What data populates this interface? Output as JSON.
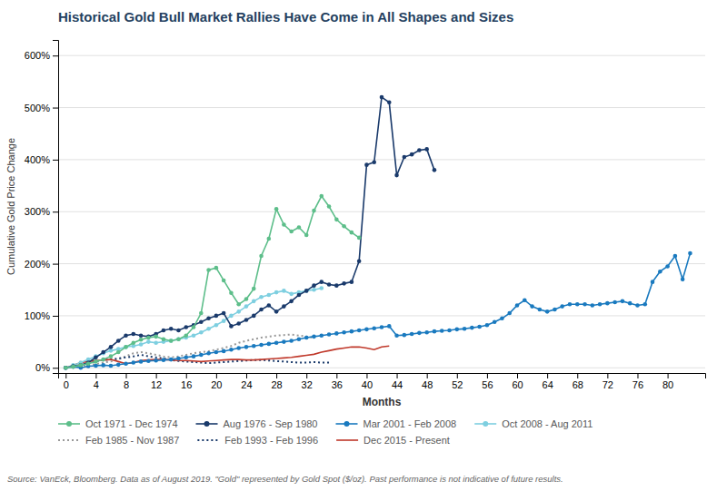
{
  "chart_data": {
    "type": "line",
    "title": "Historical Gold Bull Market Rallies Have Come in All Shapes and Sizes",
    "x_label": "Months",
    "y_label": "Cumulative Gold Price Change",
    "footnote": "Source: VanEck, Bloomberg. Data as of August 2019. \"Gold\" represented by Gold Spot ($/oz). Past performance is not indicative of future results.",
    "xlim": [
      -1,
      85
    ],
    "ylim": [
      -10,
      630
    ],
    "xticks": [
      0,
      4,
      8,
      12,
      16,
      20,
      24,
      28,
      32,
      36,
      40,
      44,
      48,
      52,
      56,
      60,
      64,
      68,
      72,
      76,
      80
    ],
    "yticks": [
      {
        "value": 0,
        "label": "0%"
      },
      {
        "value": 100,
        "label": "100%"
      },
      {
        "value": 200,
        "label": "200%"
      },
      {
        "value": 300,
        "label": "300%"
      },
      {
        "value": 400,
        "label": "400%"
      },
      {
        "value": 500,
        "label": "500%"
      },
      {
        "value": 600,
        "label": "600%"
      }
    ],
    "grid": true,
    "series": [
      {
        "name": "Oct 1971 - Dec 1974",
        "color": "#5DBE8A",
        "line_style": "solid",
        "marker": "circle",
        "x": [
          0,
          1,
          2,
          3,
          4,
          5,
          6,
          7,
          8,
          9,
          10,
          11,
          12,
          13,
          14,
          15,
          16,
          17,
          18,
          19,
          20,
          21,
          22,
          23,
          24,
          25,
          26,
          27,
          28,
          29,
          30,
          31,
          32,
          33,
          34,
          35,
          36,
          37,
          38,
          39
        ],
        "values": [
          0,
          2,
          5,
          8,
          12,
          16,
          22,
          30,
          40,
          48,
          54,
          58,
          60,
          55,
          52,
          55,
          62,
          78,
          105,
          188,
          192,
          168,
          144,
          122,
          132,
          152,
          215,
          248,
          305,
          275,
          262,
          270,
          255,
          302,
          330,
          310,
          285,
          272,
          260,
          250
        ]
      },
      {
        "name": "Aug 1976 - Sep 1980",
        "color": "#1A3A6B",
        "line_style": "solid",
        "marker": "circle",
        "x": [
          0,
          1,
          2,
          3,
          4,
          5,
          6,
          7,
          8,
          9,
          10,
          11,
          12,
          13,
          14,
          15,
          16,
          17,
          18,
          19,
          20,
          21,
          22,
          23,
          24,
          25,
          26,
          27,
          28,
          29,
          30,
          31,
          32,
          33,
          34,
          35,
          36,
          37,
          38,
          39,
          40,
          41,
          42,
          43,
          44,
          45,
          46,
          47,
          48,
          49
        ],
        "values": [
          0,
          3,
          5,
          10,
          20,
          30,
          40,
          52,
          62,
          65,
          62,
          60,
          65,
          72,
          75,
          72,
          78,
          82,
          88,
          95,
          100,
          105,
          80,
          85,
          92,
          100,
          112,
          120,
          108,
          118,
          128,
          140,
          148,
          158,
          165,
          160,
          158,
          162,
          165,
          205,
          390,
          395,
          520,
          510,
          370,
          405,
          410,
          418,
          420,
          380
        ]
      },
      {
        "name": "Mar 2001 - Feb 2008",
        "color": "#1A7ABF",
        "line_style": "solid",
        "marker": "circle",
        "x": [
          0,
          1,
          2,
          3,
          4,
          5,
          6,
          7,
          8,
          9,
          10,
          11,
          12,
          13,
          14,
          15,
          16,
          17,
          18,
          19,
          20,
          21,
          22,
          23,
          24,
          25,
          26,
          27,
          28,
          29,
          30,
          31,
          32,
          33,
          34,
          35,
          36,
          37,
          38,
          39,
          40,
          41,
          42,
          43,
          44,
          45,
          46,
          47,
          48,
          49,
          50,
          51,
          52,
          53,
          54,
          55,
          56,
          57,
          58,
          59,
          60,
          61,
          62,
          63,
          64,
          65,
          66,
          67,
          68,
          69,
          70,
          71,
          72,
          73,
          74,
          75,
          76,
          77,
          78,
          79,
          80,
          81,
          82,
          83
        ],
        "values": [
          0,
          2,
          0,
          3,
          4,
          5,
          4,
          6,
          8,
          10,
          12,
          13,
          14,
          15,
          16,
          18,
          20,
          22,
          25,
          28,
          30,
          32,
          35,
          38,
          40,
          42,
          44,
          46,
          48,
          50,
          52,
          55,
          58,
          60,
          62,
          64,
          66,
          68,
          70,
          72,
          74,
          76,
          78,
          80,
          62,
          63,
          65,
          67,
          68,
          70,
          71,
          72,
          74,
          75,
          77,
          79,
          82,
          88,
          95,
          105,
          120,
          130,
          118,
          112,
          108,
          112,
          118,
          122,
          122,
          122,
          120,
          122,
          124,
          126,
          128,
          124,
          120,
          122,
          165,
          185,
          195,
          215,
          170,
          220
        ]
      },
      {
        "name": "Oct 2008 - Aug 2011",
        "color": "#7ECFE0",
        "line_style": "solid",
        "marker": "circle",
        "x": [
          0,
          1,
          2,
          3,
          4,
          5,
          6,
          7,
          8,
          9,
          10,
          11,
          12,
          13,
          14,
          15,
          16,
          17,
          18,
          19,
          20,
          21,
          22,
          23,
          24,
          25,
          26,
          27,
          28,
          29,
          30,
          31,
          32,
          33,
          34
        ],
        "values": [
          0,
          5,
          10,
          16,
          22,
          28,
          33,
          36,
          40,
          42,
          45,
          50,
          48,
          50,
          52,
          55,
          58,
          62,
          68,
          75,
          82,
          90,
          100,
          108,
          118,
          128,
          136,
          140,
          145,
          148,
          142,
          145,
          148,
          150,
          153
        ]
      },
      {
        "name": "Feb 1985 - Nov 1987",
        "color": "#999999",
        "line_style": "dotted",
        "x": [
          0,
          1,
          2,
          3,
          4,
          5,
          6,
          7,
          8,
          9,
          10,
          11,
          12,
          13,
          14,
          15,
          16,
          17,
          18,
          19,
          20,
          21,
          22,
          23,
          24,
          25,
          26,
          27,
          28,
          29,
          30,
          31,
          32,
          33
        ],
        "values": [
          0,
          2,
          4,
          5,
          7,
          10,
          12,
          16,
          22,
          28,
          30,
          28,
          25,
          22,
          20,
          22,
          25,
          28,
          30,
          32,
          35,
          38,
          42,
          48,
          52,
          55,
          58,
          60,
          62,
          63,
          64,
          62,
          60,
          58
        ]
      },
      {
        "name": "Feb 1993 - Feb 1996",
        "color": "#1A3A6B",
        "line_style": "dotted",
        "x": [
          0,
          1,
          2,
          3,
          4,
          5,
          6,
          7,
          8,
          9,
          10,
          11,
          12,
          13,
          14,
          15,
          16,
          17,
          18,
          19,
          20,
          21,
          22,
          23,
          24,
          25,
          26,
          27,
          28,
          29,
          30,
          31,
          32,
          33,
          34,
          35
        ],
        "values": [
          0,
          3,
          6,
          9,
          12,
          15,
          16,
          18,
          20,
          22,
          25,
          22,
          20,
          18,
          15,
          13,
          12,
          11,
          10,
          9,
          10,
          11,
          12,
          13,
          14,
          15,
          15,
          14,
          13,
          12,
          11,
          10,
          10,
          11,
          10,
          10
        ]
      },
      {
        "name": "Dec 2015 - Present",
        "color": "#C0392B",
        "line_style": "solid",
        "x": [
          0,
          1,
          2,
          3,
          4,
          5,
          6,
          7,
          8,
          9,
          10,
          11,
          12,
          13,
          14,
          15,
          16,
          17,
          18,
          19,
          20,
          21,
          22,
          23,
          24,
          25,
          26,
          27,
          28,
          29,
          30,
          31,
          32,
          33,
          34,
          35,
          36,
          37,
          38,
          39,
          40,
          41,
          42,
          43
        ],
        "values": [
          0,
          5,
          10,
          12,
          14,
          15,
          16,
          12,
          8,
          10,
          14,
          15,
          16,
          16,
          15,
          14,
          14,
          13,
          12,
          13,
          14,
          15,
          16,
          16,
          15,
          15,
          16,
          17,
          18,
          19,
          20,
          22,
          24,
          26,
          30,
          33,
          36,
          38,
          40,
          40,
          38,
          35,
          40,
          42
        ]
      }
    ]
  }
}
